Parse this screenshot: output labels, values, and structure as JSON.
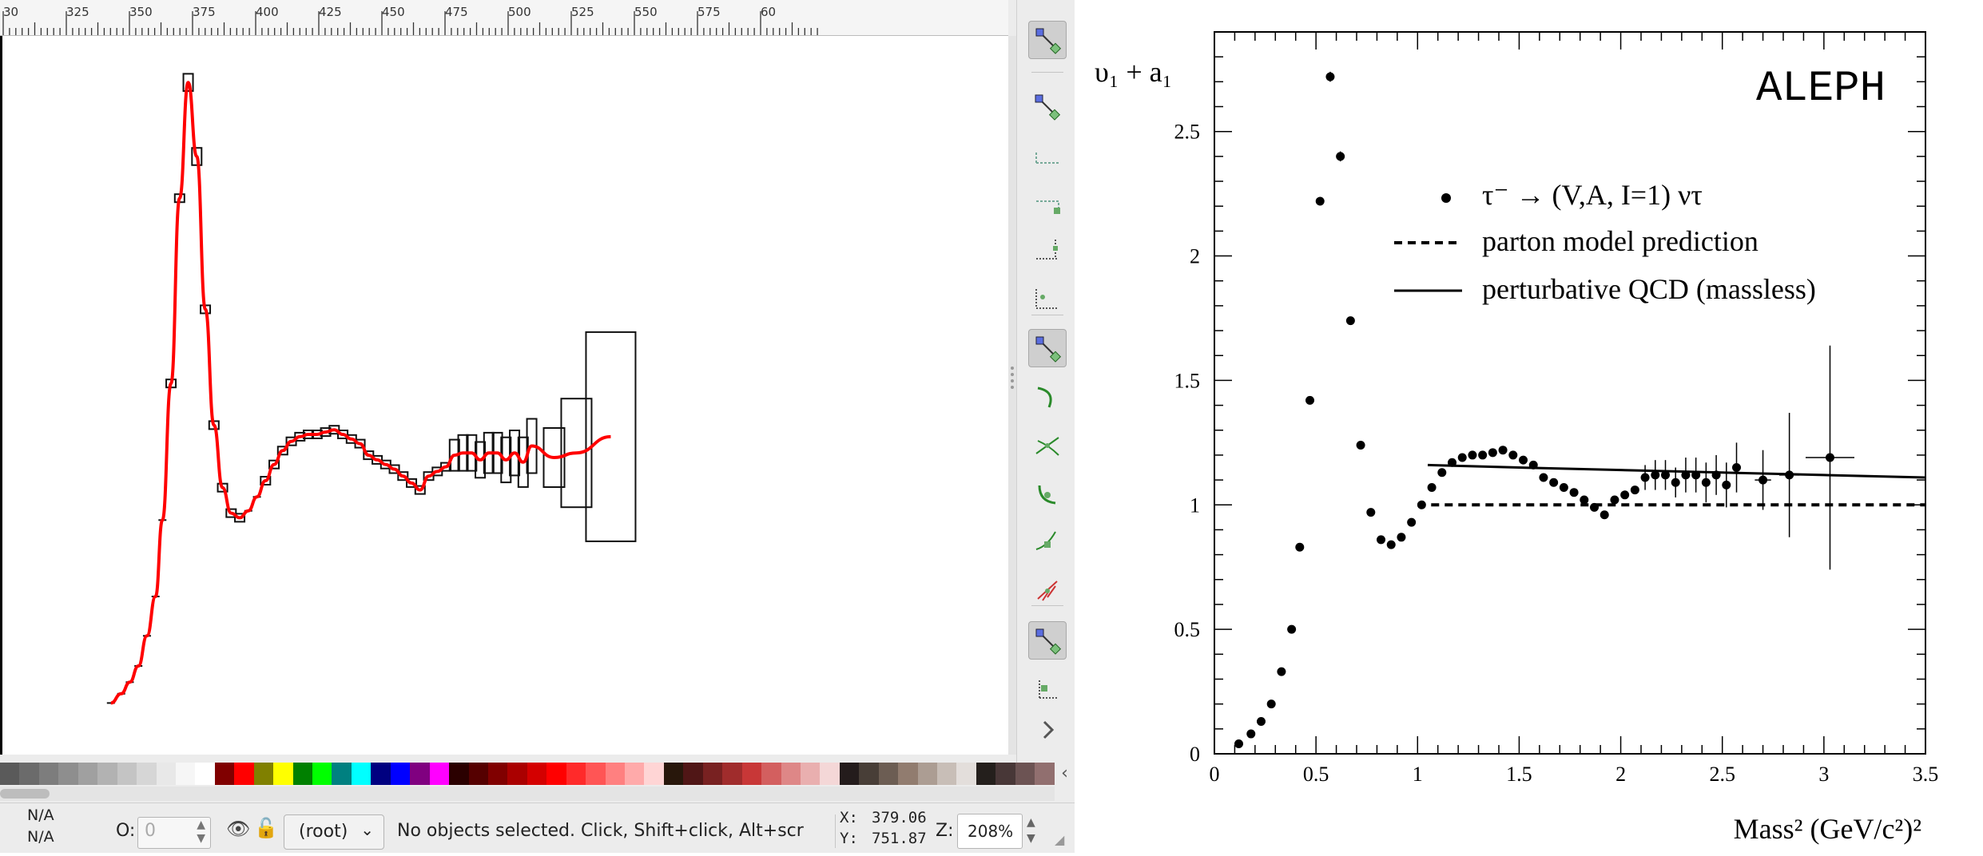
{
  "editor": {
    "ruler": {
      "labels": [
        "30",
        "325",
        "350",
        "375",
        "400",
        "425",
        "450",
        "475",
        "500",
        "525",
        "550",
        "575",
        "60"
      ]
    },
    "status": {
      "fill_label": "N/A",
      "stroke_label": "N/A",
      "opacity_label": "O:",
      "opacity_value": "0",
      "layer": "(root)",
      "message": "No objects selected. Click, Shift+click, Alt+scr",
      "x_label": "X:",
      "x_value": "379.06",
      "y_label": "Y:",
      "y_value": "751.87",
      "zoom_label": "Z:",
      "zoom_value": "208%"
    },
    "palette_colors": [
      "#5a5a5a",
      "#6b6b6b",
      "#7d7d7d",
      "#8e8e8e",
      "#a0a0a0",
      "#b2b2b2",
      "#c4c4c4",
      "#d6d6d6",
      "#e8e8e8",
      "#f6f6f6",
      "#ffffff",
      "#800000",
      "#ff0000",
      "#808000",
      "#ffff00",
      "#008000",
      "#00ff00",
      "#008080",
      "#00ffff",
      "#000080",
      "#0000ff",
      "#800080",
      "#ff00ff",
      "#2b0000",
      "#550000",
      "#800000",
      "#aa0000",
      "#d40000",
      "#ff0000",
      "#ff2a2a",
      "#ff5555",
      "#ff8080",
      "#ffaaaa",
      "#ffd5d5",
      "#28170b",
      "#501616",
      "#782121",
      "#a02c2c",
      "#c83737",
      "#d35f5f",
      "#de8787",
      "#e9afaf",
      "#f4d7d7",
      "#241c1c",
      "#483e37",
      "#6c5d53",
      "#917c6f",
      "#ac9d93",
      "#c8beb7",
      "#e3dedb",
      "#241f1c",
      "#483737",
      "#6c5353",
      "#916f6f"
    ],
    "tool_icons": [
      "node-tool-icon",
      "node-tool-icon",
      "snap-bbox-icon",
      "snap-bbox-edge-icon",
      "snap-bbox-corner-icon",
      "snap-bbox-center-icon",
      "node-snap-icon",
      "snap-path-icon",
      "snap-intersection-icon",
      "snap-cusp-icon",
      "snap-smooth-icon",
      "snap-midpoint-icon",
      "node-snap-icon",
      "snap-page-icon",
      "chevron-right-icon"
    ]
  },
  "chart_data": {
    "type": "scatter",
    "title": "ALEPH",
    "ylabel": "υ₁ + a₁",
    "xlabel": "Mass²  (GeV/c²)²",
    "xlim": [
      0,
      3.5
    ],
    "ylim": [
      0,
      2.9
    ],
    "x_ticks": [
      "0",
      "0.5",
      "1",
      "1.5",
      "2",
      "2.5",
      "3",
      "3.5"
    ],
    "y_ticks": [
      "0",
      "0.5",
      "1",
      "1.5",
      "2",
      "2.5"
    ],
    "grid": false,
    "legend_position": "top-right",
    "legend": [
      {
        "symbol": "dot",
        "label": "τ⁻ → (V,A, I=1) ντ"
      },
      {
        "symbol": "dashed",
        "label": "parton model prediction"
      },
      {
        "symbol": "solid",
        "label": "perturbative QCD (massless)"
      }
    ],
    "series": [
      {
        "name": "τ⁻ → (V,A, I=1) ντ",
        "kind": "points",
        "x": [
          0.12,
          0.18,
          0.23,
          0.28,
          0.33,
          0.38,
          0.42,
          0.47,
          0.52,
          0.57,
          0.62,
          0.67,
          0.72,
          0.77,
          0.82,
          0.87,
          0.92,
          0.97,
          1.02,
          1.07,
          1.12,
          1.17,
          1.22,
          1.27,
          1.32,
          1.37,
          1.42,
          1.47,
          1.52,
          1.57,
          1.62,
          1.67,
          1.72,
          1.77,
          1.82,
          1.87,
          1.92,
          1.97,
          2.02,
          2.07,
          2.12,
          2.17,
          2.22,
          2.27,
          2.32,
          2.37,
          2.42,
          2.47,
          2.52,
          2.57,
          2.7,
          2.83,
          3.03
        ],
        "y": [
          0.04,
          0.08,
          0.13,
          0.2,
          0.33,
          0.5,
          0.83,
          1.42,
          2.22,
          2.72,
          2.4,
          1.74,
          1.24,
          0.97,
          0.86,
          0.84,
          0.87,
          0.93,
          1.0,
          1.07,
          1.13,
          1.17,
          1.19,
          1.2,
          1.2,
          1.21,
          1.22,
          1.2,
          1.18,
          1.16,
          1.11,
          1.09,
          1.07,
          1.05,
          1.02,
          0.99,
          0.96,
          1.02,
          1.04,
          1.06,
          1.11,
          1.12,
          1.12,
          1.09,
          1.12,
          1.12,
          1.09,
          1.12,
          1.08,
          1.15,
          1.1,
          1.12,
          1.19
        ],
        "yerr": [
          0,
          0,
          0,
          0,
          0,
          0,
          0,
          0,
          0,
          0.02,
          0.02,
          0,
          0,
          0,
          0,
          0,
          0,
          0,
          0,
          0,
          0,
          0,
          0,
          0,
          0,
          0,
          0,
          0,
          0,
          0,
          0,
          0,
          0,
          0,
          0,
          0,
          0,
          0,
          0,
          0,
          0.05,
          0.06,
          0.06,
          0.06,
          0.07,
          0.07,
          0.08,
          0.08,
          0.09,
          0.1,
          0.12,
          0.25,
          0.45
        ],
        "xerr": [
          0,
          0,
          0,
          0,
          0,
          0,
          0,
          0,
          0,
          0,
          0,
          0,
          0,
          0,
          0,
          0,
          0,
          0,
          0,
          0,
          0,
          0,
          0,
          0,
          0,
          0,
          0,
          0,
          0,
          0,
          0,
          0,
          0,
          0,
          0,
          0,
          0,
          0,
          0,
          0,
          0,
          0,
          0,
          0,
          0,
          0,
          0,
          0,
          0,
          0,
          0.04,
          0.05,
          0.12
        ]
      },
      {
        "name": "parton model prediction",
        "kind": "dashed",
        "x": [
          1.0,
          3.5
        ],
        "y": [
          1.0,
          1.0
        ]
      },
      {
        "name": "perturbative QCD (massless)",
        "kind": "solid",
        "x": [
          1.05,
          1.5,
          2.0,
          2.5,
          3.0,
          3.5
        ],
        "y": [
          1.16,
          1.15,
          1.14,
          1.13,
          1.12,
          1.11
        ]
      }
    ]
  },
  "trace": {
    "x": [
      0.12,
      0.18,
      0.23,
      0.28,
      0.33,
      0.38,
      0.42,
      0.47,
      0.52,
      0.57,
      0.62,
      0.67,
      0.72,
      0.77,
      0.82,
      0.87,
      0.92,
      0.97,
      1.02,
      1.07,
      1.12,
      1.17,
      1.22,
      1.27,
      1.32,
      1.37,
      1.42,
      1.47,
      1.52,
      1.57,
      1.62,
      1.67,
      1.72,
      1.77,
      1.82,
      1.87,
      1.92,
      1.97,
      2.02,
      2.07,
      2.12,
      2.17,
      2.22,
      2.27,
      2.32,
      2.37,
      2.42,
      2.47,
      2.52,
      2.57,
      2.7,
      2.83,
      3.03
    ],
    "y": [
      0.04,
      0.08,
      0.13,
      0.2,
      0.33,
      0.5,
      0.83,
      1.42,
      2.22,
      2.72,
      2.4,
      1.74,
      1.24,
      0.97,
      0.86,
      0.84,
      0.87,
      0.93,
      1.0,
      1.07,
      1.13,
      1.17,
      1.19,
      1.2,
      1.2,
      1.21,
      1.22,
      1.2,
      1.18,
      1.16,
      1.11,
      1.09,
      1.07,
      1.05,
      1.02,
      0.99,
      0.96,
      1.02,
      1.04,
      1.06,
      1.11,
      1.12,
      1.12,
      1.09,
      1.12,
      1.12,
      1.09,
      1.12,
      1.08,
      1.15,
      1.1,
      1.12,
      1.19
    ],
    "curve_color": "#ff0000"
  }
}
